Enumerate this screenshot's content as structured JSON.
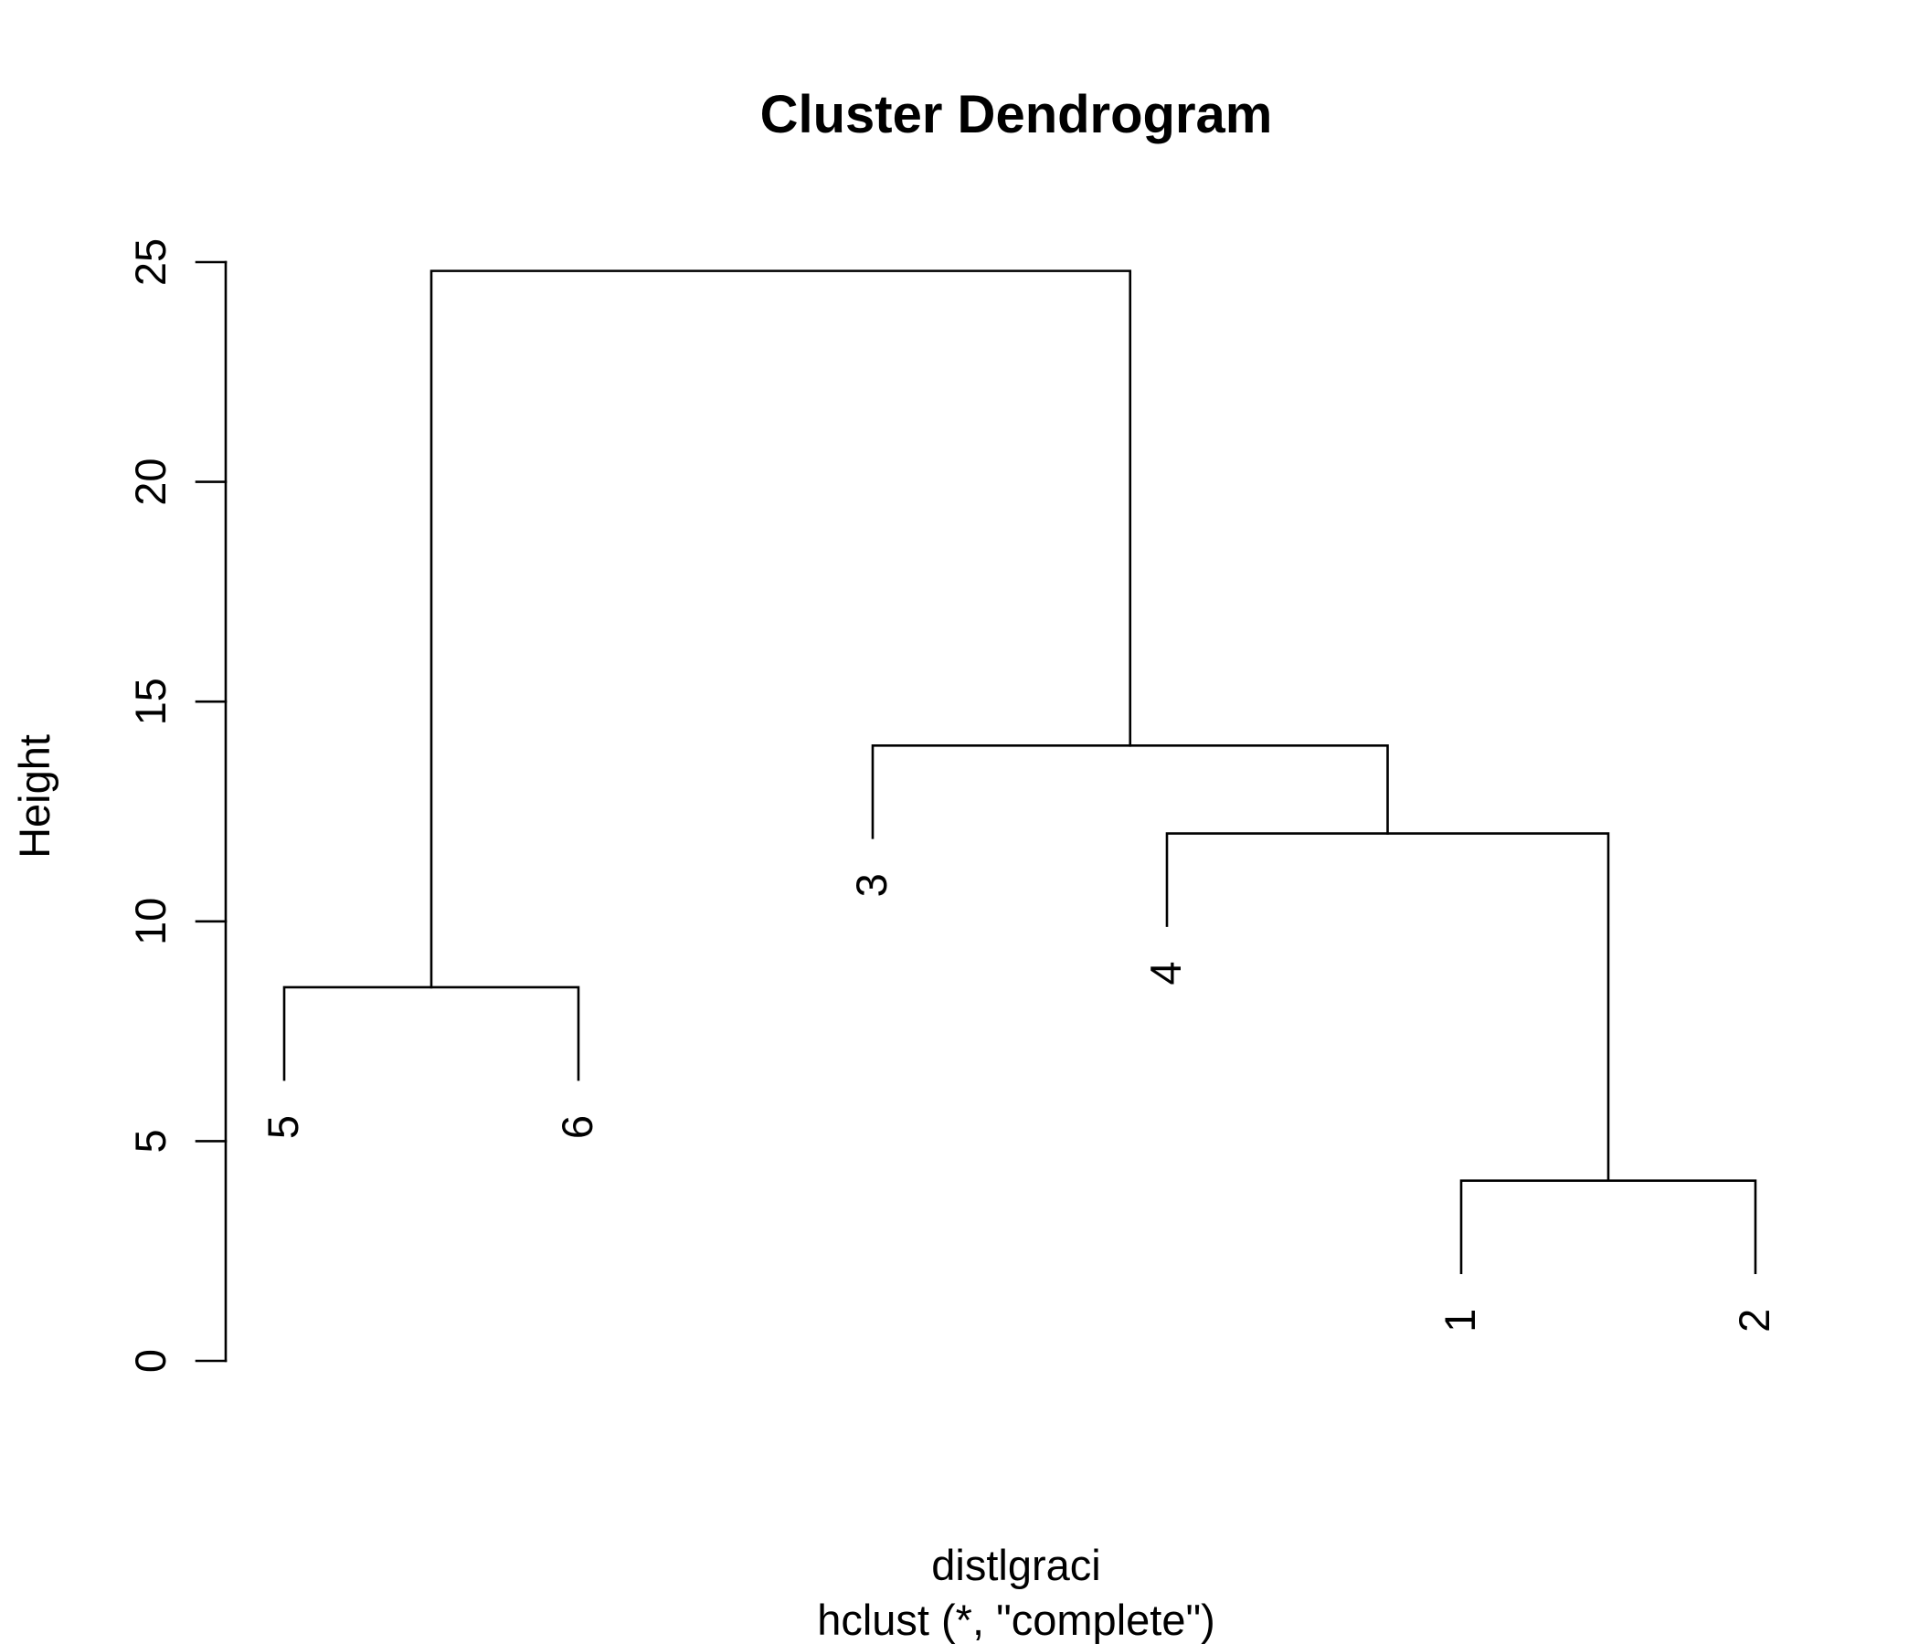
{
  "chart_data": {
    "type": "dendrogram",
    "title": "Cluster Dendrogram",
    "ylabel": "Height",
    "xlabel": "distlgraci",
    "sub": "hclust (*, \"complete\")",
    "ylim": [
      0,
      25
    ],
    "yticks": [
      0,
      5,
      10,
      15,
      20,
      25
    ],
    "leaf_order": [
      "5",
      "6",
      "3",
      "4",
      "1",
      "2"
    ],
    "merges": [
      {
        "left": "1",
        "right": "2",
        "height": 4.1
      },
      {
        "left": "5",
        "right": "6",
        "height": 8.5
      },
      {
        "left": "4",
        "right": "(1,2)",
        "height": 12.0
      },
      {
        "left": "3",
        "right": "(4,(1,2))",
        "height": 14.0
      },
      {
        "left": "(5,6)",
        "right": "(3,(4,(1,2)))",
        "height": 24.8
      }
    ],
    "leaf_label_gap": 2.1
  }
}
